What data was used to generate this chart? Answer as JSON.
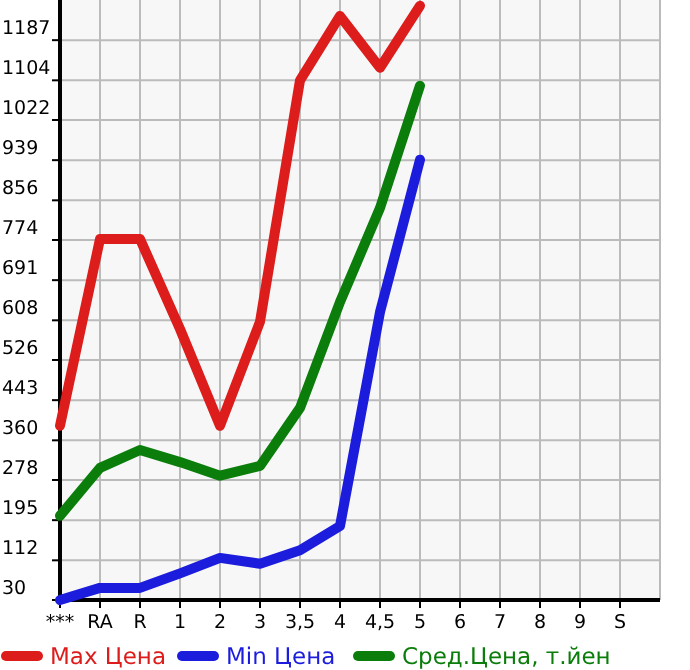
{
  "chart_data": {
    "type": "line",
    "categories": [
      "***",
      "RA",
      "R",
      "1",
      "2",
      "3",
      "3,5",
      "4",
      "4,5",
      "5",
      "6",
      "7",
      "8",
      "9",
      "S"
    ],
    "ylim": [
      30,
      1270
    ],
    "yticks": [
      30,
      112,
      195,
      278,
      360,
      443,
      526,
      608,
      691,
      774,
      856,
      939,
      1022,
      1104,
      1187
    ],
    "grid": true,
    "legend": "bottom",
    "marker": "none",
    "series": [
      {
        "name": "Max Цена",
        "color": "#dd1c1c",
        "values": [
          390,
          776,
          776,
          590,
          390,
          605,
          1104,
          1237,
          1130,
          1258,
          null,
          null,
          null,
          null,
          null
        ]
      },
      {
        "name": "Min Цена",
        "color": "#1c1cdd",
        "values": [
          30,
          55,
          55,
          85,
          117,
          105,
          133,
          183,
          625,
          940,
          null,
          null,
          null,
          null,
          null
        ]
      },
      {
        "name": "Сред.Цена, т.йен",
        "color": "#0b7d0b",
        "values": [
          204,
          303,
          340,
          315,
          287,
          307,
          427,
          646,
          840,
          1093,
          null,
          null,
          null,
          null,
          null
        ]
      }
    ]
  }
}
